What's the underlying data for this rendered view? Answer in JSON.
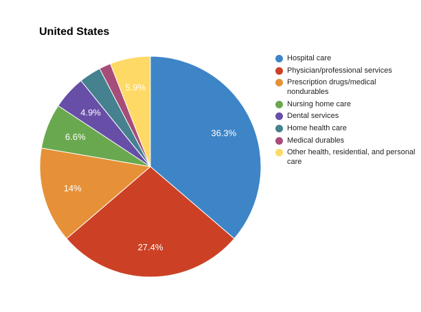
{
  "chart_data": {
    "type": "pie",
    "title": "United States",
    "legend_position": "right",
    "slices": [
      {
        "name": "Hospital care",
        "value": 36.3,
        "label": "36.3%",
        "color": "#3d85c6"
      },
      {
        "name": "Physician/professional services",
        "value": 27.4,
        "label": "27.4%",
        "color": "#cc4125"
      },
      {
        "name": "Prescription drugs/medical nondurables",
        "value": 14,
        "label": "14%",
        "color": "#e69138"
      },
      {
        "name": "Nursing home care",
        "value": 6.6,
        "label": "6.6%",
        "color": "#6aa84f"
      },
      {
        "name": "Dental services",
        "value": 4.9,
        "label": "4.9%",
        "color": "#674ea7"
      },
      {
        "name": "Home health care",
        "value": 3.2,
        "label": "",
        "color": "#45818e"
      },
      {
        "name": "Medical durables",
        "value": 1.7,
        "label": "",
        "color": "#a64d79"
      },
      {
        "name": "Other health, residential, and personal care",
        "value": 5.9,
        "label": "5.9%",
        "color": "#ffd966"
      }
    ]
  }
}
